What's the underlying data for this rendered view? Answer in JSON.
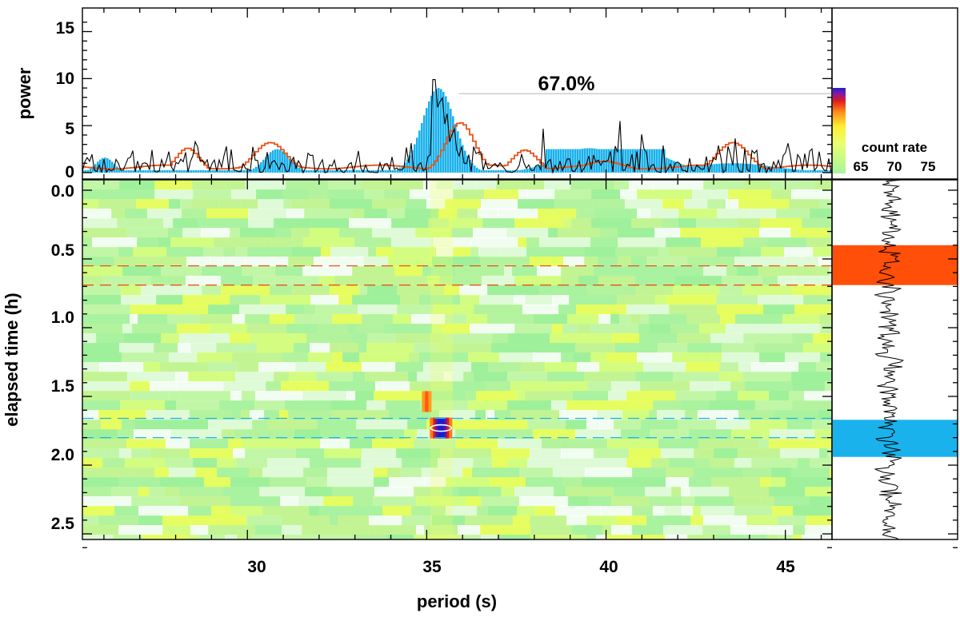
{
  "chart_data": {
    "type": "heatmap",
    "panels": {
      "periodogram": {
        "ylabel": "power",
        "yticks": [
          "0",
          "5",
          "10",
          "15"
        ],
        "ylim": [
          0,
          17
        ],
        "xlim": [
          25.4,
          46.3
        ],
        "annotation": "67.0%",
        "annotation_level": 8.4,
        "series": [
          {
            "style": "filled histogram",
            "color": "#1ab2ec"
          },
          {
            "style": "line",
            "color": "#000000"
          },
          {
            "style": "stepped line",
            "color": "#e8541a"
          }
        ],
        "smooth_peaks": [
          {
            "x": 28.3,
            "y": 2.6
          },
          {
            "x": 30.6,
            "y": 3.2
          },
          {
            "x": 35.9,
            "y": 5.3
          },
          {
            "x": 37.7,
            "y": 2.4
          },
          {
            "x": 39.9,
            "y": 1.2
          },
          {
            "x": 43.5,
            "y": 3.2
          }
        ],
        "filled_peaks": [
          {
            "x": 26.0,
            "y": 1.6
          },
          {
            "x": 30.8,
            "y": 2.5
          },
          {
            "x": 35.3,
            "y": 9.0
          },
          {
            "x": 39.5,
            "y": 2.6
          },
          {
            "x": 40.8,
            "y": 2.5
          },
          {
            "x": 43.5,
            "y": 1.0
          }
        ]
      },
      "colorbar": {
        "title": "count rate",
        "ticks": [
          "65",
          "70",
          "75"
        ]
      },
      "dynamic_spectrum": {
        "xlabel": "period (s)",
        "ylabel": "elapsed time (h)",
        "xticks": [
          "30",
          "35",
          "40",
          "45"
        ],
        "yticks": [
          "0.0",
          "0.5",
          "1.0",
          "1.5",
          "2.0",
          "2.5"
        ],
        "xlim": [
          25.4,
          46.3
        ],
        "ylim": [
          2.63,
          -0.05
        ],
        "red_window_h": [
          0.55,
          0.69
        ],
        "blue_window_h": [
          1.66,
          1.8
        ],
        "peak": {
          "period": 35.4,
          "time_h": 1.73
        },
        "secondary_peak": {
          "period": 35.0,
          "time_h": 1.52
        }
      },
      "lightcurve": {
        "red_band_h": [
          0.4,
          0.69
        ],
        "blue_band_h": [
          1.67,
          1.94
        ],
        "colors": {
          "red": "#ff4f08",
          "blue": "#1ab2ec"
        }
      }
    }
  }
}
